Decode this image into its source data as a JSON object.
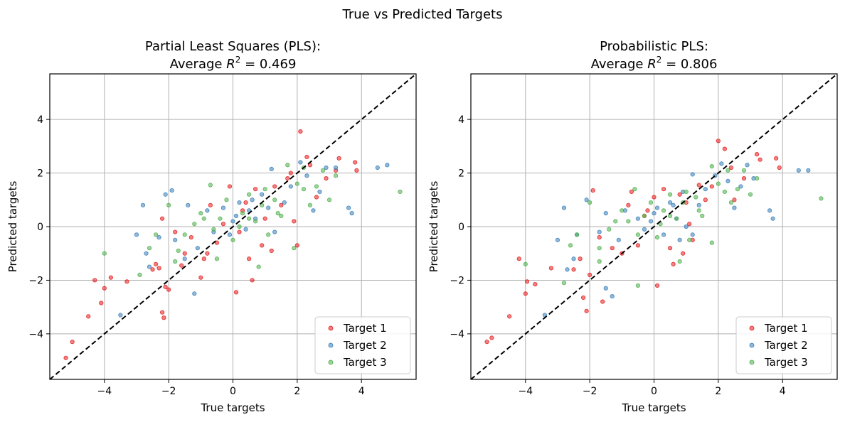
{
  "suptitle": "True vs Predicted Targets",
  "colors": {
    "target1": "#e41a1c",
    "target2": "#377eb8",
    "target3": "#4daf4a",
    "grid": "#b0b0b0",
    "diagonal": "#000000"
  },
  "chart_data": [
    {
      "type": "scatter",
      "title_line1": "Partial Least Squares (PLS):",
      "title_line2_prefix": "Average ",
      "title_line2_r": "R",
      "title_line2_sup": "2",
      "title_line2_suffix": " = 0.469",
      "xlabel": "True targets",
      "ylabel": "Predicted targets",
      "xlim": [
        -5.7,
        5.7
      ],
      "ylim": [
        -5.7,
        5.7
      ],
      "xticks": [
        -4,
        -2,
        0,
        2,
        4
      ],
      "yticks": [
        -4,
        -2,
        0,
        2,
        4
      ],
      "tick_labels": [
        "−4",
        "−2",
        "0",
        "2",
        "4"
      ],
      "grid": true,
      "legend_position": "lower-right",
      "reference_line": "y = x (dashed)",
      "series": [
        {
          "name": "Target 1",
          "color": "#e41a1c",
          "points": [
            [
              -5.2,
              -4.9
            ],
            [
              -5.0,
              -4.3
            ],
            [
              -4.5,
              -3.35
            ],
            [
              -4.3,
              -2.0
            ],
            [
              -4.1,
              -2.85
            ],
            [
              -4.0,
              -2.3
            ],
            [
              -3.8,
              -1.9
            ],
            [
              -3.3,
              -2.05
            ],
            [
              -2.5,
              -1.6
            ],
            [
              -2.4,
              -1.4
            ],
            [
              -2.3,
              -1.55
            ],
            [
              -2.2,
              -3.2
            ],
            [
              -2.15,
              -3.4
            ],
            [
              -2.1,
              -2.25
            ],
            [
              -2.0,
              -2.35
            ],
            [
              -2.2,
              0.3
            ],
            [
              -1.8,
              -0.2
            ],
            [
              -1.6,
              -1.45
            ],
            [
              -1.5,
              -1.0
            ],
            [
              -1.3,
              -0.4
            ],
            [
              -1.0,
              -1.9
            ],
            [
              -0.9,
              -1.2
            ],
            [
              -0.8,
              -1.0
            ],
            [
              -0.7,
              0.8
            ],
            [
              -0.5,
              -0.6
            ],
            [
              -0.3,
              0.1
            ],
            [
              -0.1,
              1.5
            ],
            [
              0.1,
              -2.45
            ],
            [
              0.2,
              -0.2
            ],
            [
              0.3,
              0.6
            ],
            [
              0.5,
              -1.2
            ],
            [
              0.6,
              -2.0
            ],
            [
              0.7,
              1.4
            ],
            [
              0.9,
              -0.7
            ],
            [
              1.0,
              0.3
            ],
            [
              1.2,
              -0.9
            ],
            [
              1.3,
              1.5
            ],
            [
              1.5,
              0.8
            ],
            [
              1.7,
              1.8
            ],
            [
              1.8,
              2.0
            ],
            [
              2.0,
              -0.7
            ],
            [
              2.1,
              3.55
            ],
            [
              2.3,
              2.6
            ],
            [
              2.4,
              2.3
            ],
            [
              2.6,
              1.1
            ],
            [
              2.9,
              1.8
            ],
            [
              3.2,
              2.1
            ],
            [
              3.3,
              2.55
            ],
            [
              3.8,
              2.4
            ],
            [
              3.85,
              2.1
            ],
            [
              1.9,
              0.2
            ],
            [
              0.4,
              0.9
            ]
          ]
        },
        {
          "name": "Target 2",
          "color": "#377eb8",
          "points": [
            [
              -3.5,
              -3.3
            ],
            [
              -3.0,
              -0.3
            ],
            [
              -2.8,
              0.8
            ],
            [
              -2.7,
              -1.0
            ],
            [
              -2.6,
              -1.5
            ],
            [
              -2.1,
              1.2
            ],
            [
              -1.9,
              1.35
            ],
            [
              -1.8,
              -0.5
            ],
            [
              -1.5,
              -1.2
            ],
            [
              -1.2,
              -2.5
            ],
            [
              -1.1,
              -0.8
            ],
            [
              -0.8,
              0.6
            ],
            [
              -0.6,
              -0.2
            ],
            [
              -0.3,
              0.7
            ],
            [
              -0.1,
              -0.3
            ],
            [
              0.1,
              0.4
            ],
            [
              0.2,
              0.9
            ],
            [
              0.4,
              -0.1
            ],
            [
              0.5,
              0.6
            ],
            [
              0.7,
              0.3
            ],
            [
              0.9,
              1.2
            ],
            [
              1.1,
              0.7
            ],
            [
              1.3,
              -0.2
            ],
            [
              1.6,
              0.9
            ],
            [
              1.8,
              1.5
            ],
            [
              2.1,
              2.4
            ],
            [
              2.3,
              1.9
            ],
            [
              2.5,
              0.6
            ],
            [
              2.7,
              1.3
            ],
            [
              2.9,
              2.2
            ],
            [
              3.2,
              2.2
            ],
            [
              3.6,
              0.7
            ],
            [
              3.7,
              0.5
            ],
            [
              4.5,
              2.2
            ],
            [
              4.8,
              2.3
            ],
            [
              1.2,
              2.15
            ],
            [
              0.6,
              1.0
            ],
            [
              -1.4,
              0.8
            ],
            [
              -2.3,
              -0.4
            ],
            [
              0.0,
              0.2
            ]
          ]
        },
        {
          "name": "Target 3",
          "color": "#4daf4a",
          "points": [
            [
              -4.0,
              -1.0
            ],
            [
              -2.9,
              -1.8
            ],
            [
              -2.6,
              -0.8
            ],
            [
              -2.4,
              -0.3
            ],
            [
              -2.0,
              0.8
            ],
            [
              -1.7,
              -0.9
            ],
            [
              -1.5,
              -0.3
            ],
            [
              -1.2,
              0.1
            ],
            [
              -1.0,
              0.5
            ],
            [
              -0.7,
              1.55
            ],
            [
              -0.6,
              -0.1
            ],
            [
              -0.4,
              0.3
            ],
            [
              -0.2,
              1.0
            ],
            [
              0.0,
              -0.5
            ],
            [
              0.3,
              0.5
            ],
            [
              0.5,
              1.2
            ],
            [
              0.7,
              0.2
            ],
            [
              0.9,
              0.8
            ],
            [
              1.1,
              -0.3
            ],
            [
              1.3,
              1.0
            ],
            [
              1.5,
              0.4
            ],
            [
              1.7,
              2.3
            ],
            [
              1.9,
              -0.8
            ],
            [
              2.0,
              1.6
            ],
            [
              2.2,
              1.4
            ],
            [
              2.4,
              0.8
            ],
            [
              2.6,
              1.5
            ],
            [
              2.8,
              2.1
            ],
            [
              3.0,
              1.0
            ],
            [
              3.2,
              1.9
            ],
            [
              5.2,
              1.3
            ],
            [
              0.2,
              0.0
            ],
            [
              -0.9,
              0.3
            ],
            [
              1.4,
              0.5
            ],
            [
              0.8,
              -1.5
            ],
            [
              -1.8,
              -1.3
            ],
            [
              2.2,
              2.2
            ],
            [
              0.5,
              0.3
            ],
            [
              1.0,
              1.4
            ],
            [
              -0.5,
              -1.2
            ]
          ]
        }
      ]
    },
    {
      "type": "scatter",
      "title_line1": "Probabilistic PLS:",
      "title_line2_prefix": "Average ",
      "title_line2_r": "R",
      "title_line2_sup": "2",
      "title_line2_suffix": " = 0.806",
      "xlabel": "True targets",
      "ylabel": "Predicted targets",
      "xlim": [
        -5.7,
        5.7
      ],
      "ylim": [
        -5.7,
        5.7
      ],
      "xticks": [
        -4,
        -2,
        0,
        2,
        4
      ],
      "yticks": [
        -4,
        -2,
        0,
        2,
        4
      ],
      "tick_labels": [
        "−4",
        "−2",
        "0",
        "2",
        "4"
      ],
      "grid": true,
      "legend_position": "lower-right",
      "reference_line": "y = x (dashed)",
      "series": [
        {
          "name": "Target 1",
          "color": "#e41a1c",
          "points": [
            [
              -5.2,
              -4.3
            ],
            [
              -5.05,
              -4.15
            ],
            [
              -4.5,
              -3.35
            ],
            [
              -4.2,
              -1.2
            ],
            [
              -4.0,
              -2.5
            ],
            [
              -3.95,
              -2.05
            ],
            [
              -3.7,
              -2.15
            ],
            [
              -3.2,
              -1.55
            ],
            [
              -2.5,
              -1.6
            ],
            [
              -2.3,
              -1.2
            ],
            [
              -2.2,
              -2.65
            ],
            [
              -2.1,
              -3.15
            ],
            [
              -2.0,
              -1.8
            ],
            [
              -1.9,
              1.35
            ],
            [
              -1.7,
              -0.4
            ],
            [
              -1.6,
              -2.8
            ],
            [
              -1.3,
              -0.8
            ],
            [
              -1.0,
              -1.0
            ],
            [
              -0.8,
              0.8
            ],
            [
              -0.7,
              1.3
            ],
            [
              -0.5,
              -0.7
            ],
            [
              -0.3,
              0.4
            ],
            [
              0.0,
              1.1
            ],
            [
              0.1,
              -2.2
            ],
            [
              0.3,
              1.4
            ],
            [
              0.5,
              -0.8
            ],
            [
              0.6,
              -1.4
            ],
            [
              0.8,
              1.2
            ],
            [
              0.9,
              -1.0
            ],
            [
              1.0,
              0.9
            ],
            [
              1.2,
              -0.5
            ],
            [
              1.4,
              1.55
            ],
            [
              1.6,
              1.0
            ],
            [
              1.8,
              1.5
            ],
            [
              2.0,
              3.2
            ],
            [
              2.2,
              2.9
            ],
            [
              2.4,
              2.2
            ],
            [
              2.5,
              1.0
            ],
            [
              2.8,
              1.8
            ],
            [
              3.2,
              2.7
            ],
            [
              3.3,
              2.5
            ],
            [
              3.8,
              2.55
            ],
            [
              3.9,
              2.2
            ],
            [
              -0.2,
              0.6
            ],
            [
              1.1,
              0.1
            ]
          ]
        },
        {
          "name": "Target 2",
          "color": "#377eb8",
          "points": [
            [
              -3.4,
              -3.3
            ],
            [
              -3.0,
              -0.5
            ],
            [
              -2.8,
              0.7
            ],
            [
              -2.7,
              -1.6
            ],
            [
              -2.5,
              -1.2
            ],
            [
              -2.1,
              1.0
            ],
            [
              -1.7,
              -0.2
            ],
            [
              -1.5,
              -2.3
            ],
            [
              -1.3,
              -2.6
            ],
            [
              -1.1,
              -0.5
            ],
            [
              -0.9,
              0.6
            ],
            [
              -0.5,
              0.3
            ],
            [
              -0.3,
              -0.1
            ],
            [
              0.0,
              0.5
            ],
            [
              0.1,
              0.7
            ],
            [
              0.3,
              -0.3
            ],
            [
              0.5,
              0.9
            ],
            [
              0.7,
              0.3
            ],
            [
              0.9,
              1.3
            ],
            [
              1.0,
              0.0
            ],
            [
              1.2,
              -0.3
            ],
            [
              1.4,
              0.8
            ],
            [
              1.6,
              1.4
            ],
            [
              1.9,
              1.9
            ],
            [
              2.1,
              2.35
            ],
            [
              2.3,
              1.7
            ],
            [
              2.5,
              0.7
            ],
            [
              2.7,
              1.5
            ],
            [
              2.9,
              2.3
            ],
            [
              3.1,
              1.8
            ],
            [
              3.6,
              0.6
            ],
            [
              3.7,
              0.3
            ],
            [
              4.5,
              2.1
            ],
            [
              4.8,
              2.1
            ],
            [
              1.2,
              1.95
            ],
            [
              0.6,
              0.8
            ],
            [
              -1.5,
              0.5
            ],
            [
              -2.4,
              -0.3
            ],
            [
              -0.1,
              0.2
            ],
            [
              0.8,
              -0.5
            ]
          ]
        },
        {
          "name": "Target 3",
          "color": "#4daf4a",
          "points": [
            [
              -4.0,
              -1.4
            ],
            [
              -2.8,
              -2.1
            ],
            [
              -2.6,
              -0.7
            ],
            [
              -2.4,
              -0.3
            ],
            [
              -2.0,
              0.9
            ],
            [
              -1.7,
              -0.8
            ],
            [
              -1.4,
              -0.1
            ],
            [
              -1.2,
              0.2
            ],
            [
              -1.0,
              0.6
            ],
            [
              -0.6,
              1.4
            ],
            [
              -0.5,
              -0.3
            ],
            [
              -0.3,
              0.4
            ],
            [
              -0.1,
              0.9
            ],
            [
              0.1,
              -0.4
            ],
            [
              0.3,
              0.6
            ],
            [
              0.5,
              1.2
            ],
            [
              0.7,
              0.3
            ],
            [
              0.9,
              0.9
            ],
            [
              1.1,
              -0.5
            ],
            [
              1.3,
              1.1
            ],
            [
              1.5,
              0.4
            ],
            [
              1.8,
              2.25
            ],
            [
              1.8,
              -0.6
            ],
            [
              2.0,
              1.6
            ],
            [
              2.2,
              1.3
            ],
            [
              2.4,
              0.9
            ],
            [
              2.6,
              1.4
            ],
            [
              2.8,
              2.1
            ],
            [
              3.0,
              1.2
            ],
            [
              3.2,
              1.8
            ],
            [
              5.2,
              1.05
            ],
            [
              0.2,
              0.1
            ],
            [
              -0.8,
              0.2
            ],
            [
              1.4,
              0.6
            ],
            [
              0.8,
              -1.3
            ],
            [
              -1.7,
              -1.3
            ],
            [
              2.3,
              2.1
            ],
            [
              0.5,
              0.4
            ],
            [
              1.0,
              1.3
            ],
            [
              -0.5,
              -2.2
            ]
          ]
        }
      ]
    }
  ]
}
